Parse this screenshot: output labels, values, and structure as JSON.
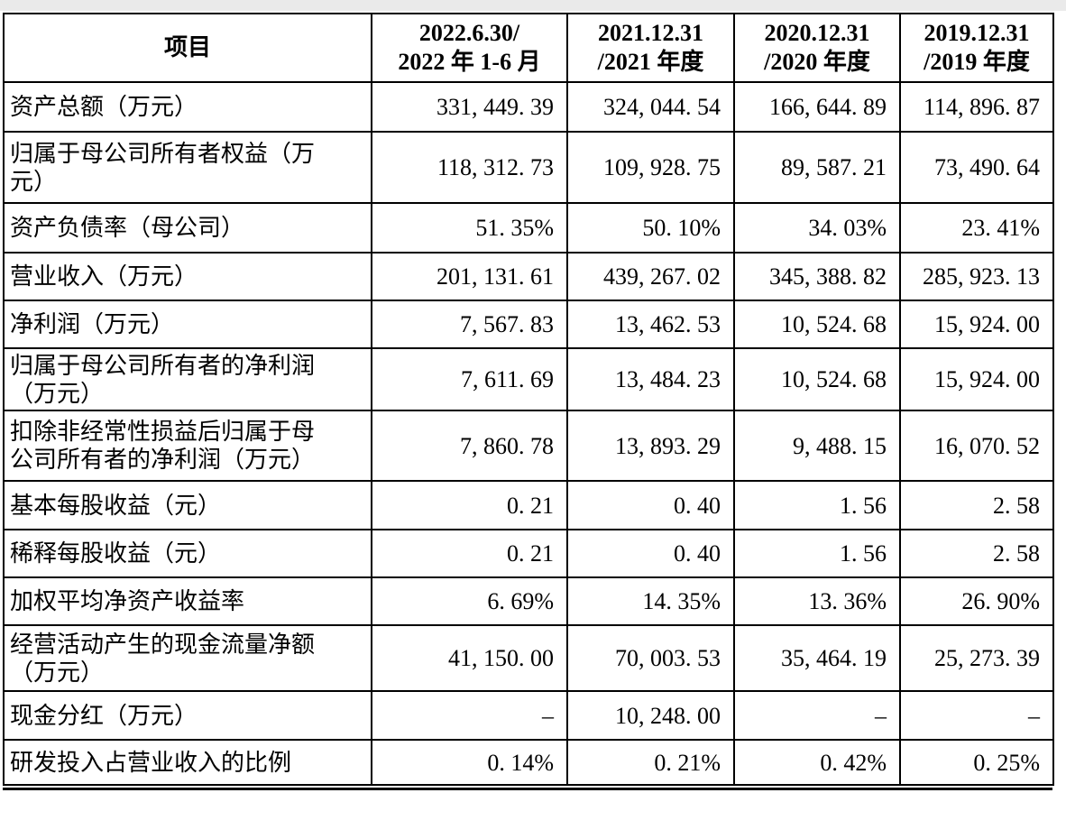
{
  "table": {
    "columns": [
      {
        "label": "项目"
      },
      {
        "label": "2022.6.30/\n2022 年 1-6 月"
      },
      {
        "label": "2021.12.31\n/2021 年度"
      },
      {
        "label": "2020.12.31\n/2020 年度"
      },
      {
        "label": "2019.12.31\n/2019 年度"
      }
    ],
    "rows": [
      {
        "label": "资产总额（万元）",
        "values": [
          "331, 449. 39",
          "324, 044. 54",
          "166, 644. 89",
          "114, 896. 87"
        ]
      },
      {
        "label": "归属于母公司所有者权益（万\n元）",
        "values": [
          "118, 312. 73",
          "109, 928. 75",
          "89, 587. 21",
          "73, 490. 64"
        ]
      },
      {
        "label": "资产负债率（母公司）",
        "values": [
          "51. 35%",
          "50. 10%",
          "34. 03%",
          "23. 41%"
        ]
      },
      {
        "label": "营业收入（万元）",
        "values": [
          "201, 131. 61",
          "439, 267. 02",
          "345, 388. 82",
          "285, 923. 13"
        ]
      },
      {
        "label": "净利润（万元）",
        "values": [
          "7, 567. 83",
          "13, 462. 53",
          "10, 524. 68",
          "15, 924. 00"
        ]
      },
      {
        "label": "归属于母公司所有者的净利润\n（万元）",
        "values": [
          "7, 611. 69",
          "13, 484. 23",
          "10, 524. 68",
          "15, 924. 00"
        ]
      },
      {
        "label": "扣除非经常性损益后归属于母\n公司所有者的净利润（万元）",
        "values": [
          "7, 860. 78",
          "13, 893. 29",
          "9, 488. 15",
          "16, 070. 52"
        ]
      },
      {
        "label": "基本每股收益（元）",
        "values": [
          "0. 21",
          "0. 40",
          "1. 56",
          "2. 58"
        ]
      },
      {
        "label": "稀释每股收益（元）",
        "values": [
          "0. 21",
          "0. 40",
          "1. 56",
          "2. 58"
        ]
      },
      {
        "label": "加权平均净资产收益率",
        "values": [
          "6. 69%",
          "14. 35%",
          "13. 36%",
          "26. 90%"
        ]
      },
      {
        "label": "经营活动产生的现金流量净额\n（万元）",
        "values": [
          "41, 150. 00",
          "70, 003. 53",
          "35, 464. 19",
          "25, 273. 39"
        ]
      },
      {
        "label": "现金分红（万元）",
        "values": [
          "–",
          "10, 248. 00",
          "–",
          "–"
        ]
      },
      {
        "label": "研发投入占营业收入的比例",
        "values": [
          "0. 14%",
          "0. 21%",
          "0. 42%",
          "0. 25%"
        ]
      }
    ],
    "grid_color": "#000000",
    "text_color": "#000000"
  }
}
